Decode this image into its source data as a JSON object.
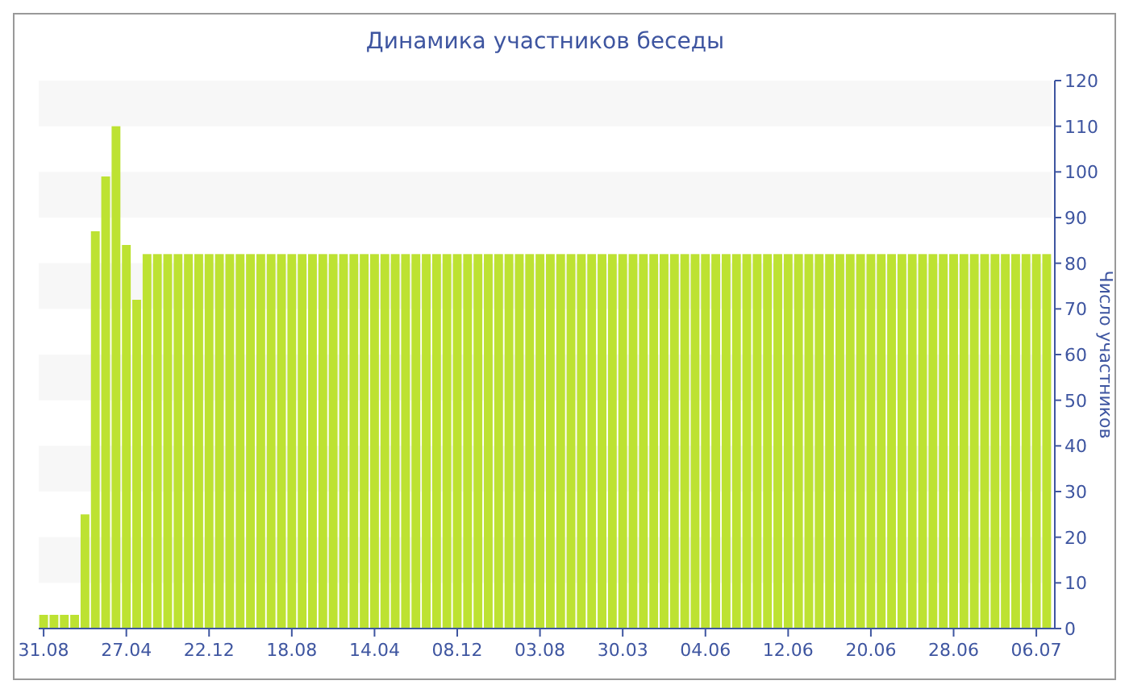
{
  "chart_data": {
    "type": "bar",
    "title": "Динамика участников беседы",
    "ylabel": "Число участников",
    "categories": [
      "31.08",
      null,
      null,
      null,
      null,
      null,
      null,
      null,
      "27.04",
      null,
      null,
      null,
      null,
      null,
      null,
      null,
      "22.12",
      null,
      null,
      null,
      null,
      null,
      null,
      null,
      "18.08",
      null,
      null,
      null,
      null,
      null,
      null,
      null,
      "14.04",
      null,
      null,
      null,
      null,
      null,
      null,
      null,
      "08.12",
      null,
      null,
      null,
      null,
      null,
      null,
      null,
      "03.08",
      null,
      null,
      null,
      null,
      null,
      null,
      null,
      "30.03",
      null,
      null,
      null,
      null,
      null,
      null,
      null,
      "04.06",
      null,
      null,
      null,
      null,
      null,
      null,
      null,
      "12.06",
      null,
      null,
      null,
      null,
      null,
      null,
      null,
      "20.06",
      null,
      null,
      null,
      null,
      null,
      null,
      null,
      "28.06",
      null,
      null,
      null,
      null,
      null,
      null,
      null,
      "06.07",
      null
    ],
    "values": [
      3,
      3,
      3,
      3,
      25,
      87,
      99,
      110,
      84,
      72,
      82,
      82,
      82,
      82,
      82,
      82,
      82,
      82,
      82,
      82,
      82,
      82,
      82,
      82,
      82,
      82,
      82,
      82,
      82,
      82,
      82,
      82,
      82,
      82,
      82,
      82,
      82,
      82,
      82,
      82,
      82,
      82,
      82,
      82,
      82,
      82,
      82,
      82,
      82,
      82,
      82,
      82,
      82,
      82,
      82,
      82,
      82,
      82,
      82,
      82,
      82,
      82,
      82,
      82,
      82,
      82,
      82,
      82,
      82,
      82,
      82,
      82,
      82,
      82,
      82,
      82,
      82,
      82,
      82,
      82,
      82,
      82,
      82,
      82,
      82,
      82,
      82,
      82,
      82,
      82,
      82,
      82,
      82,
      82,
      82,
      82,
      82,
      82
    ],
    "color": "#bde232",
    "ylim": [
      0,
      120
    ],
    "yticks": [
      0,
      10,
      20,
      30,
      40,
      50,
      60,
      70,
      80,
      90,
      100,
      110,
      120
    ],
    "bands": [
      {
        "axis": "y",
        "from": 110,
        "to": 120,
        "color": "#f7f7f7"
      },
      {
        "axis": "y",
        "from": 90,
        "to": 100,
        "color": "#f7f7f7"
      },
      {
        "axis": "y",
        "from": 70,
        "to": 80,
        "color": "#f7f7f7"
      },
      {
        "axis": "y",
        "from": 50,
        "to": 60,
        "color": "#f7f7f7"
      },
      {
        "axis": "y",
        "from": 30,
        "to": 40,
        "color": "#f7f7f7"
      },
      {
        "axis": "y",
        "from": 10,
        "to": 20,
        "color": "#f7f7f7"
      }
    ]
  }
}
